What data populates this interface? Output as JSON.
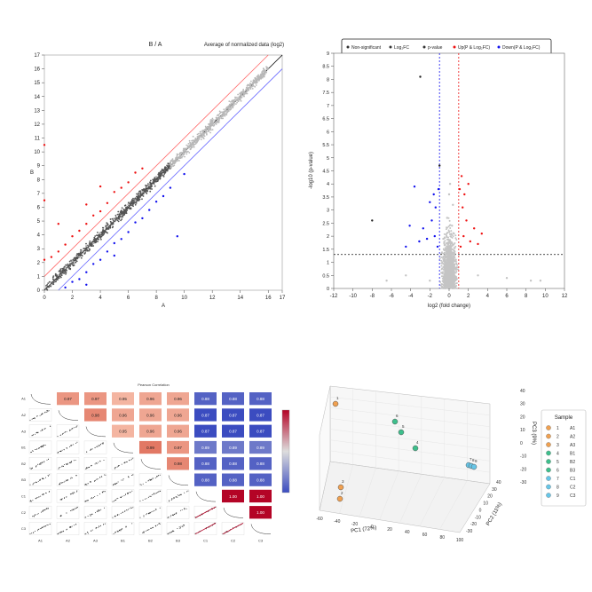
{
  "chart_data": [
    {
      "type": "scatter",
      "panel": "ma-scatter",
      "title": "B / A",
      "subtitle": "Average of normalized data (log2)",
      "xlabel": "A",
      "ylabel": "B",
      "xlim": [
        0,
        17
      ],
      "ylim": [
        0,
        17
      ],
      "xticks": [
        0,
        2,
        4,
        6,
        8,
        10,
        12,
        14,
        16,
        17
      ],
      "yticks": [
        0,
        1,
        2,
        3,
        4,
        5,
        6,
        7,
        8,
        9,
        10,
        11,
        12,
        13,
        14,
        15,
        16,
        17
      ],
      "grid": false,
      "reference_lines": [
        {
          "name": "identity",
          "intercept": 0,
          "slope": 1,
          "color": "#000000"
        },
        {
          "name": "up-threshold",
          "intercept": 1,
          "slope": 1,
          "color": "#ff6666"
        },
        {
          "name": "down-threshold",
          "intercept": -1,
          "slope": 1,
          "color": "#6666ff"
        }
      ],
      "series": [
        {
          "group": "not-significant",
          "color": "#b8b8b8",
          "points": [
            [
              0.5,
              0.4
            ],
            [
              1,
              1.1
            ],
            [
              1.5,
              1.6
            ],
            [
              2,
              2.1
            ],
            [
              2.5,
              2.4
            ],
            [
              3,
              3.2
            ],
            [
              3.5,
              3.4
            ],
            [
              4,
              4.1
            ],
            [
              4.5,
              4.6
            ],
            [
              5,
              5.1
            ],
            [
              5.5,
              5.4
            ],
            [
              6,
              6.2
            ],
            [
              6.5,
              6.5
            ],
            [
              7,
              7.1
            ],
            [
              7.5,
              7.6
            ],
            [
              8,
              8.2
            ],
            [
              8.5,
              8.4
            ],
            [
              9,
              9.1
            ],
            [
              9.5,
              9.6
            ],
            [
              10,
              10.2
            ],
            [
              10.5,
              10.5
            ],
            [
              11,
              11.1
            ],
            [
              11.5,
              11.6
            ],
            [
              12,
              12.2
            ],
            [
              12.5,
              12.4
            ],
            [
              13,
              13.1
            ],
            [
              13.5,
              13.6
            ],
            [
              14,
              14.2
            ],
            [
              14.5,
              14.6
            ],
            [
              15,
              15.1
            ],
            [
              15.5,
              15.5
            ]
          ]
        },
        {
          "group": "up-regulated",
          "color": "#ee1111",
          "points": [
            [
              0,
              2.2
            ],
            [
              0.5,
              2.4
            ],
            [
              1,
              2.8
            ],
            [
              1.5,
              3.3
            ],
            [
              2,
              3.9
            ],
            [
              2.5,
              4.3
            ],
            [
              3,
              4.8
            ],
            [
              3.5,
              5.4
            ],
            [
              4,
              5.7
            ],
            [
              4.5,
              6.3
            ],
            [
              5,
              7.1
            ],
            [
              5.5,
              7.4
            ],
            [
              6,
              7.8
            ],
            [
              6.5,
              8.5
            ],
            [
              7,
              8.8
            ],
            [
              0,
              10.5
            ],
            [
              0,
              6.5
            ],
            [
              1,
              4.8
            ],
            [
              3,
              6.2
            ],
            [
              4,
              7.5
            ]
          ]
        },
        {
          "group": "down-regulated",
          "color": "#1111ee",
          "points": [
            [
              1.5,
              0.2
            ],
            [
              2,
              0.6
            ],
            [
              2.5,
              0.8
            ],
            [
              3,
              1.3
            ],
            [
              3.5,
              1.9
            ],
            [
              4,
              2.2
            ],
            [
              4.5,
              2.8
            ],
            [
              5,
              3.4
            ],
            [
              5.5,
              3.7
            ],
            [
              6,
              4.2
            ],
            [
              6.5,
              4.9
            ],
            [
              7,
              5.2
            ],
            [
              7.5,
              5.8
            ],
            [
              8,
              6.4
            ],
            [
              8.5,
              6.8
            ],
            [
              9,
              7.4
            ],
            [
              10,
              8.4
            ],
            [
              9.5,
              3.9
            ],
            [
              3,
              0.4
            ],
            [
              5,
              2.5
            ]
          ]
        }
      ]
    },
    {
      "type": "scatter",
      "panel": "volcano",
      "title": "",
      "xlabel": "log2 (fold change)",
      "ylabel": "-log10 (p-value)",
      "xlim": [
        -12,
        12
      ],
      "ylim": [
        0,
        9
      ],
      "xticks": [
        -12,
        -10,
        -8,
        -6,
        -4,
        -2,
        0,
        2,
        4,
        6,
        8,
        10,
        12
      ],
      "yticks": [
        0,
        0.5,
        1,
        1.5,
        2,
        2.5,
        3,
        3.5,
        4,
        4.5,
        5,
        5.5,
        6,
        6.5,
        7,
        7.5,
        8,
        8.5,
        9
      ],
      "grid": false,
      "legend_position": "top",
      "legend": [
        {
          "label": "Non-significant",
          "color": "#333333"
        },
        {
          "label": "Log₂FC",
          "color": "#333333"
        },
        {
          "label": "p-value",
          "color": "#333333"
        },
        {
          "label": "Up(P & Log₂FC)",
          "color": "#ee1111"
        },
        {
          "label": "Down(P & Log₂FC)",
          "color": "#1111ee"
        }
      ],
      "threshold_lines": {
        "x": [
          -1,
          1
        ],
        "y": 1.3
      },
      "series": [
        {
          "group": "not-significant",
          "color": "#c4c4c4",
          "points": [
            [
              -0.5,
              0.4
            ],
            [
              0.2,
              0.9
            ],
            [
              -0.3,
              1.5
            ],
            [
              0.5,
              2.1
            ],
            [
              -0.2,
              2.7
            ],
            [
              0.4,
              3.2
            ],
            [
              0,
              3.6
            ],
            [
              0.3,
              2.4
            ],
            [
              -0.6,
              1.9
            ],
            [
              0.7,
              1.1
            ],
            [
              -0.8,
              0.6
            ],
            [
              0.1,
              4.0
            ],
            [
              -4.5,
              0.5
            ],
            [
              -2,
              0.3
            ],
            [
              3,
              0.5
            ],
            [
              -6.5,
              0.3
            ],
            [
              8.5,
              0.3
            ],
            [
              9.5,
              0.3
            ],
            [
              6,
              0.4
            ]
          ]
        },
        {
          "group": "up-regulated",
          "color": "#ee1111",
          "points": [
            [
              1.2,
              1.6
            ],
            [
              1.5,
              2.0
            ],
            [
              1.8,
              2.6
            ],
            [
              2.2,
              1.8
            ],
            [
              1.4,
              3.1
            ],
            [
              2.6,
              2.3
            ],
            [
              1.6,
              3.6
            ],
            [
              3.0,
              1.7
            ],
            [
              1.3,
              4.3
            ],
            [
              2.0,
              4.0
            ],
            [
              1.1,
              3.8
            ],
            [
              3.4,
              2.1
            ]
          ]
        },
        {
          "group": "down-regulated",
          "color": "#1111ee",
          "points": [
            [
              -1.2,
              1.6
            ],
            [
              -1.5,
              2.0
            ],
            [
              -1.8,
              2.6
            ],
            [
              -2.3,
              1.9
            ],
            [
              -1.4,
              3.1
            ],
            [
              -2.7,
              2.3
            ],
            [
              -1.6,
              3.6
            ],
            [
              -3.1,
              1.8
            ],
            [
              -3.6,
              3.9
            ],
            [
              -4.1,
              2.4
            ],
            [
              -2.0,
              3.3
            ],
            [
              -1.1,
              3.8
            ],
            [
              -4.5,
              1.6
            ]
          ]
        },
        {
          "group": "outliers",
          "color": "#222222",
          "points": [
            [
              -3,
              8.1
            ],
            [
              -8,
              2.6
            ],
            [
              -1,
              4.7
            ]
          ]
        }
      ]
    },
    {
      "type": "heatmap",
      "panel": "correlation-matrix",
      "title": "Pearson Correlation",
      "samples": [
        "A1",
        "A2",
        "A3",
        "B1",
        "B2",
        "B3",
        "C1",
        "C2",
        "C3"
      ],
      "values": [
        [
          null,
          0.97,
          0.97,
          0.95,
          0.96,
          0.96,
          0.88,
          0.88,
          0.88
        ],
        [
          null,
          null,
          0.98,
          0.96,
          0.96,
          0.96,
          0.87,
          0.87,
          0.87
        ],
        [
          null,
          null,
          null,
          0.95,
          0.96,
          0.96,
          0.87,
          0.87,
          0.87
        ],
        [
          null,
          null,
          null,
          null,
          0.99,
          0.97,
          0.89,
          0.89,
          0.89
        ],
        [
          null,
          null,
          null,
          null,
          null,
          0.98,
          0.88,
          0.88,
          0.88
        ],
        [
          null,
          null,
          null,
          null,
          null,
          null,
          0.88,
          0.88,
          0.88
        ],
        [
          null,
          null,
          null,
          null,
          null,
          null,
          null,
          1.0,
          1.0
        ],
        [
          null,
          null,
          null,
          null,
          null,
          null,
          null,
          null,
          1.0
        ],
        [
          null,
          null,
          null,
          null,
          null,
          null,
          null,
          null,
          null
        ]
      ],
      "colorbar": {
        "min": 0.87,
        "max": 1.0,
        "low_color": "#3b4cc0",
        "mid_color": "#dddddd",
        "high_color": "#b40426"
      }
    },
    {
      "type": "scatter",
      "panel": "pca-3d",
      "title": "",
      "xlabel": "PC1 (72%)",
      "ylabel": "PC2 (11%)",
      "zlabel": "PC3 (9%)",
      "xlim": [
        -60,
        100
      ],
      "ylim": [
        -30,
        40
      ],
      "zlim": [
        -30,
        40
      ],
      "xticks": [
        -60,
        -40,
        -20,
        0,
        20,
        40,
        60,
        80,
        100
      ],
      "yticks": [
        -30,
        -20,
        -10,
        0,
        10,
        20,
        30,
        40
      ],
      "zticks": [
        -30,
        -20,
        -10,
        0,
        10,
        20,
        30,
        40
      ],
      "legend_title": "Sample",
      "legend_position": "right",
      "points": [
        {
          "id": "1",
          "sample": "A1",
          "color": "#f0a050"
        },
        {
          "id": "2",
          "sample": "A2",
          "color": "#f0a050"
        },
        {
          "id": "3",
          "sample": "A3",
          "color": "#f0a050"
        },
        {
          "id": "4",
          "sample": "B1",
          "color": "#3dbf8c"
        },
        {
          "id": "5",
          "sample": "B2",
          "color": "#3dbf8c"
        },
        {
          "id": "6",
          "sample": "B3",
          "color": "#3dbf8c"
        },
        {
          "id": "7",
          "sample": "C1",
          "color": "#66c6e8"
        },
        {
          "id": "8",
          "sample": "C2",
          "color": "#66c6e8"
        },
        {
          "id": "9",
          "sample": "C3",
          "color": "#66c6e8"
        }
      ]
    }
  ]
}
